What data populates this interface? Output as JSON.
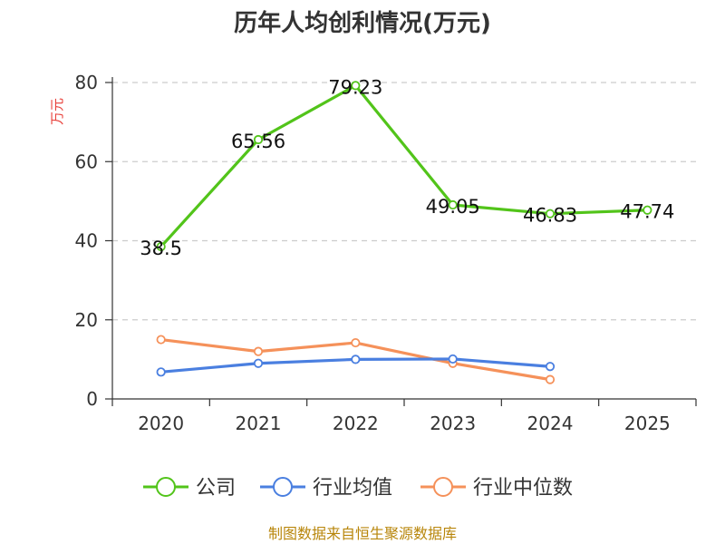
{
  "chart_data": {
    "type": "line",
    "title": "历年人均创利情况(万元)",
    "ylabel": "万元",
    "xlabel": "",
    "categories": [
      "2020",
      "2021",
      "2022",
      "2023",
      "2024",
      "2025"
    ],
    "ylim": [
      0,
      80
    ],
    "yticks": [
      0,
      20,
      40,
      60,
      80
    ],
    "grid": true,
    "legend_position": "bottom",
    "series": [
      {
        "name": "公司",
        "color": "#52c41a",
        "values": [
          38.5,
          65.56,
          79.23,
          49.05,
          46.83,
          47.74
        ],
        "labels": [
          "38.5",
          "65.56",
          "79.23",
          "49.05",
          "46.83",
          "47.74"
        ]
      },
      {
        "name": "行业均值",
        "color": "#4a7fe0",
        "values": [
          6.8,
          9.0,
          10.0,
          10.1,
          8.2,
          null
        ]
      },
      {
        "name": "行业中位数",
        "color": "#f5915a",
        "values": [
          15.0,
          12.0,
          14.2,
          9.0,
          4.9,
          null
        ]
      }
    ]
  },
  "source": "制图数据来自恒生聚源数据库"
}
